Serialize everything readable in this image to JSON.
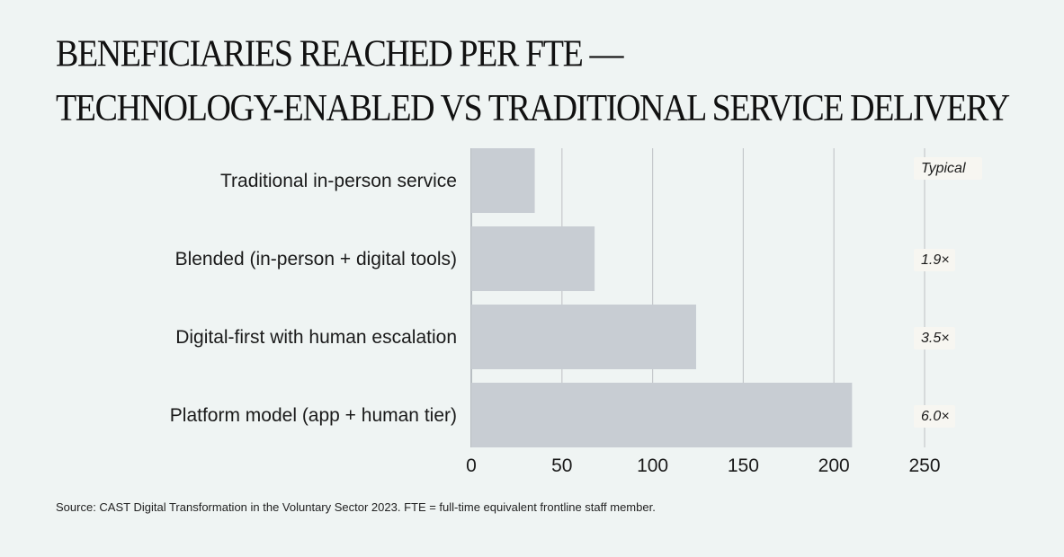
{
  "title_line1": "BENEFICIARIES REACHED PER FTE —",
  "title_line2": "TECHNOLOGY-ENABLED VS TRADITIONAL SERVICE DELIVERY",
  "source": "Source: CAST Digital Transformation in the Voluntary Sector 2023. FTE = full-time equivalent frontline staff member.",
  "colors": {
    "bar": "#c8cdd3",
    "grid": "#c5c8cb",
    "annotation_bg": "#f7f6f1"
  },
  "chart_data": {
    "type": "bar",
    "orientation": "horizontal",
    "categories": [
      "Traditional in-person service",
      "Blended (in-person + digital tools)",
      "Digital-first with human escalation",
      "Platform model (app + human tier)"
    ],
    "values": [
      35,
      68,
      124,
      210
    ],
    "annotations": [
      "Typical",
      "1.9×",
      "3.5×",
      "6.0×"
    ],
    "xlim": [
      0,
      250
    ],
    "xticks": [
      0,
      50,
      100,
      150,
      200,
      250
    ],
    "grid": true,
    "legend": "none"
  }
}
